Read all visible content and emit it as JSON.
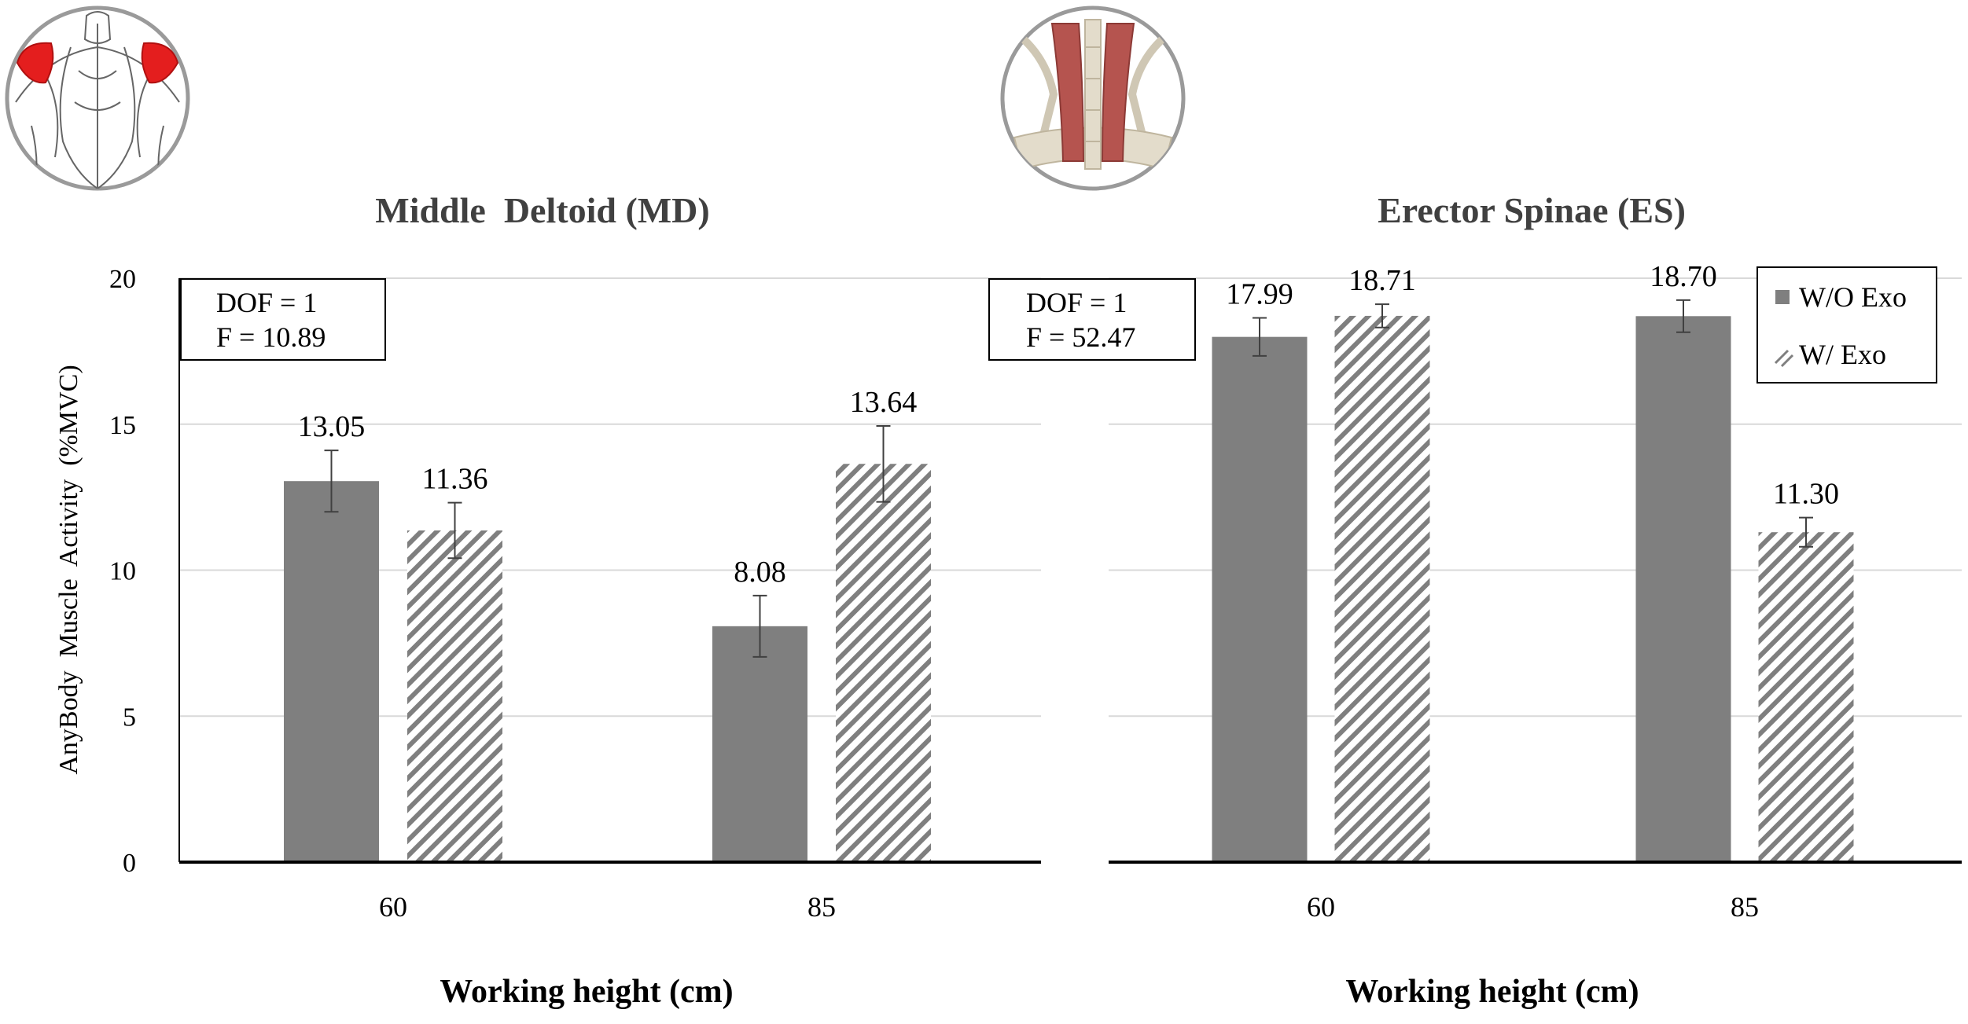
{
  "figure": {
    "y_axis_label": "AnyBody  Muscle  Activity  (%MVC)",
    "legend": [
      {
        "label": "W/O Exo",
        "pattern": "solid"
      },
      {
        "label": "W/ Exo",
        "pattern": "hatched"
      }
    ],
    "colors": {
      "bar": "#7f7f7f",
      "hatch": "#7f7f7f",
      "grid": "#d9d9d9",
      "axis": "#000000",
      "text": "#000000",
      "title": "#404040",
      "muscle_highlight": "#e41e1e",
      "muscle_red": "#b5544f",
      "bone": "#e3dccb",
      "sketch": "#666666"
    },
    "icons": [
      "back-shoulder-muscle-icon",
      "spine-muscle-icon"
    ]
  },
  "chart_data": [
    {
      "type": "bar",
      "title": "Middle  Deltoid (MD)",
      "xlabel": "Working height (cm)",
      "ylabel": "AnyBody  Muscle  Activity  (%MVC)",
      "ylim": [
        0,
        20
      ],
      "yticks": [
        0,
        5,
        10,
        15,
        20
      ],
      "grid": true,
      "categories": [
        "60",
        "85"
      ],
      "series": [
        {
          "name": "W/O Exo",
          "values": [
            13.05,
            8.08
          ],
          "errors": [
            1.05,
            1.05
          ],
          "labels": [
            "13.05",
            "8.08"
          ]
        },
        {
          "name": "W/ Exo",
          "values": [
            11.36,
            13.64
          ],
          "errors": [
            0.95,
            1.3
          ],
          "labels": [
            "11.36",
            "13.64"
          ]
        }
      ],
      "stats": {
        "dof": "DOF = 1",
        "f": "F = 10.89"
      }
    },
    {
      "type": "bar",
      "title": "Erector Spinae (ES)",
      "xlabel": "Working height (cm)",
      "ylim": [
        0,
        20
      ],
      "grid": true,
      "categories": [
        "60",
        "85"
      ],
      "series": [
        {
          "name": "W/O Exo",
          "values": [
            17.99,
            18.7
          ],
          "errors": [
            0.65,
            0.55
          ],
          "labels": [
            "17.99",
            "18.70"
          ]
        },
        {
          "name": "W/ Exo",
          "values": [
            18.71,
            11.3
          ],
          "errors": [
            0.4,
            0.5
          ],
          "labels": [
            "18.71",
            "11.30"
          ]
        }
      ],
      "stats": {
        "dof": "DOF = 1",
        "f": "F = 52.47"
      },
      "legend_position": "top-right"
    }
  ]
}
